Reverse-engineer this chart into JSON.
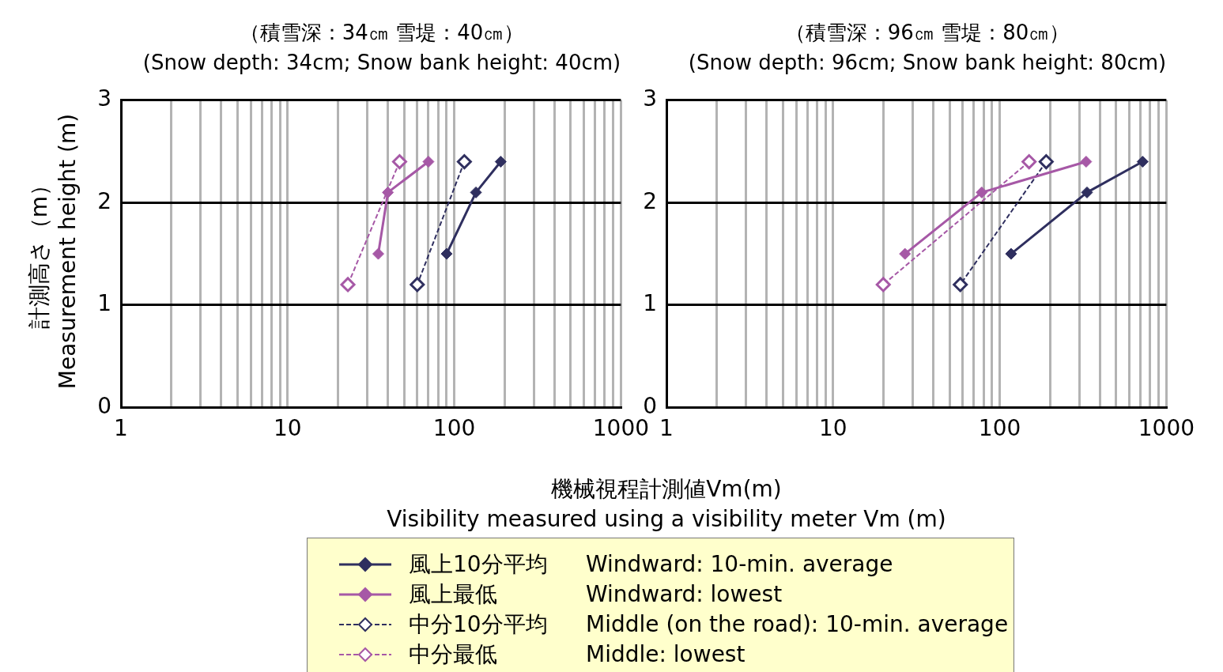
{
  "chart_data": [
    {
      "type": "line",
      "title": "（積雪深：34㎝ 雪堤：40㎝）",
      "subtitle": "(Snow depth: 34cm; Snow bank height: 40cm)",
      "xlabel": "機械視程計測値Vm(m)\nVisibility measured using a visibility meter Vm (m)",
      "ylabel": "計測高さ（m）\nMeasurement height (m)",
      "log": "x",
      "xlim": [
        1,
        1000
      ],
      "ylim": [
        0,
        3
      ],
      "yticks": [
        0,
        1,
        2,
        3
      ],
      "xticks": [
        1,
        {
          "value": 2,
          "label": null
        },
        {
          "value": 3,
          "label": null
        },
        {
          "value": 4,
          "label": null
        },
        {
          "value": 5,
          "label": null
        },
        {
          "value": 6,
          "label": null
        },
        {
          "value": 7,
          "label": null
        },
        {
          "value": 8,
          "label": null
        },
        {
          "value": 9,
          "label": null
        },
        10,
        {
          "value": 20,
          "label": null
        },
        {
          "value": 30,
          "label": null
        },
        {
          "value": 40,
          "label": null
        },
        {
          "value": 50,
          "label": null
        },
        {
          "value": 60,
          "label": null
        },
        {
          "value": 70,
          "label": null
        },
        {
          "value": 80,
          "label": null
        },
        {
          "value": 90,
          "label": null
        },
        100,
        {
          "value": 200,
          "label": null
        },
        {
          "value": 300,
          "label": null
        },
        {
          "value": 400,
          "label": null
        },
        {
          "value": 500,
          "label": null
        },
        {
          "value": 600,
          "label": null
        },
        {
          "value": 700,
          "label": null
        },
        {
          "value": 800,
          "label": null
        },
        {
          "value": 900,
          "label": null
        },
        1000
      ],
      "grid": true,
      "legend": "bottom",
      "marker": "diamond",
      "series": [
        {
          "name": "風上10分平均\tWindward: 10-min. average",
          "color": "#2f2f5f",
          "line_style": "solid",
          "x": [
            190,
            135,
            90
          ],
          "values": [
            2.4,
            2.1,
            1.5
          ]
        },
        {
          "name": "風上最低\tWindward: lowest",
          "color": "#a658a6",
          "line_style": "solid",
          "x": [
            70,
            40,
            35
          ],
          "values": [
            2.4,
            2.1,
            1.5
          ]
        },
        {
          "name": "中分10分平均\tMiddle (on the road): 10-min. average",
          "color": "#2f2f5f",
          "line_style": "dashed",
          "x": [
            115,
            60
          ],
          "values": [
            2.4,
            1.2
          ]
        },
        {
          "name": "中分最低\tMiddle: lowest",
          "color": "#a658a6",
          "line_style": "dashed",
          "x": [
            47,
            23
          ],
          "values": [
            2.4,
            1.2
          ]
        }
      ]
    },
    {
      "type": "line",
      "title": "（積雪深：96㎝ 雪堤：80㎝）",
      "subtitle": "(Snow depth: 96cm; Snow bank height: 80cm)",
      "log": "x",
      "xlim": [
        1,
        1000
      ],
      "ylim": [
        0,
        3
      ],
      "yticks": [
        0,
        1,
        2,
        3
      ],
      "xticks": [
        1,
        {
          "value": 2,
          "label": null
        },
        {
          "value": 3,
          "label": null
        },
        {
          "value": 4,
          "label": null
        },
        {
          "value": 5,
          "label": null
        },
        {
          "value": 6,
          "label": null
        },
        {
          "value": 7,
          "label": null
        },
        {
          "value": 8,
          "label": null
        },
        {
          "value": 9,
          "label": null
        },
        10,
        {
          "value": 20,
          "label": null
        },
        {
          "value": 30,
          "label": null
        },
        {
          "value": 40,
          "label": null
        },
        {
          "value": 50,
          "label": null
        },
        {
          "value": 60,
          "label": null
        },
        {
          "value": 70,
          "label": null
        },
        {
          "value": 80,
          "label": null
        },
        {
          "value": 90,
          "label": null
        },
        100,
        {
          "value": 200,
          "label": null
        },
        {
          "value": 300,
          "label": null
        },
        {
          "value": 400,
          "label": null
        },
        {
          "value": 500,
          "label": null
        },
        {
          "value": 600,
          "label": null
        },
        {
          "value": 700,
          "label": null
        },
        {
          "value": 800,
          "label": null
        },
        {
          "value": 900,
          "label": null
        },
        1000
      ],
      "grid": true,
      "marker": "diamond",
      "series": [
        {
          "color": "#2f2f5f",
          "line_style": "solid",
          "x": [
            720,
            334,
            117
          ],
          "values": [
            2.4,
            2.1,
            1.5
          ]
        },
        {
          "color": "#a658a6",
          "line_style": "solid",
          "x": [
            330,
            78,
            27
          ],
          "values": [
            2.4,
            2.1,
            1.5
          ]
        },
        {
          "color": "#2f2f5f",
          "line_style": "dashed",
          "x": [
            190,
            58
          ],
          "values": [
            2.4,
            1.2
          ]
        },
        {
          "color": "#a658a6",
          "line_style": "dashed",
          "x": [
            150,
            20
          ],
          "values": [
            2.4,
            1.2
          ]
        }
      ]
    }
  ]
}
